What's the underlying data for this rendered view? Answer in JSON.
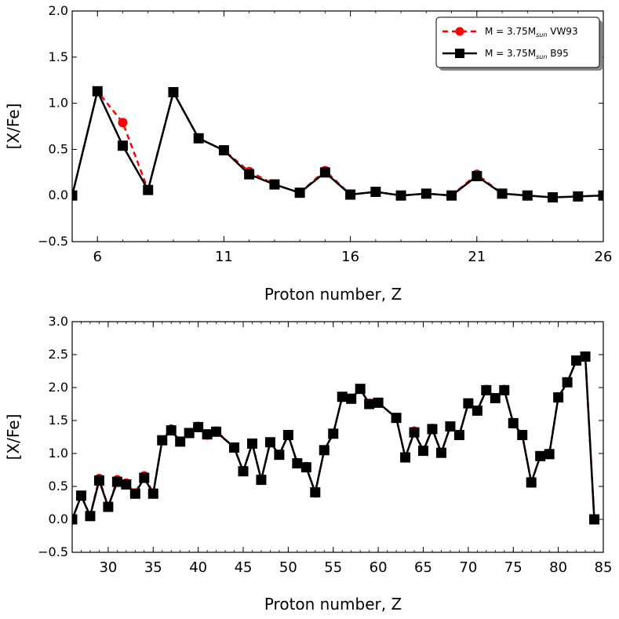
{
  "chart_data": [
    {
      "type": "line",
      "xlabel": "Proton number, Z",
      "ylabel": "[X/Fe]",
      "xlim": [
        5,
        26
      ],
      "ylim": [
        -0.5,
        2.0
      ],
      "xticks": [
        6,
        11,
        16,
        21,
        26
      ],
      "yticks": [
        -0.5,
        0.0,
        0.5,
        1.0,
        1.5,
        2.0
      ],
      "ytick_labels": [
        "−0.5",
        "0.0",
        "0.5",
        "1.0",
        "1.5",
        "2.0"
      ],
      "legend_position": "top-right",
      "series": [
        {
          "name": "M = 3.75M_sun VW93",
          "legend_main": "M = 3.75M",
          "legend_sub": "sun",
          "legend_suffix": " VW93",
          "color": "#ff0000",
          "style": "dashed",
          "marker": "circle",
          "x": [
            5,
            6,
            7,
            8,
            9,
            10,
            11,
            12,
            13,
            14,
            15,
            16,
            17,
            18,
            19,
            20,
            21,
            22,
            23,
            24,
            25,
            26
          ],
          "y": [
            0.0,
            1.13,
            0.79,
            0.06,
            1.12,
            0.62,
            0.49,
            0.26,
            0.12,
            0.03,
            0.27,
            0.01,
            0.04,
            0.0,
            0.02,
            0.0,
            0.23,
            0.02,
            0.0,
            -0.02,
            -0.01,
            0.0
          ]
        },
        {
          "name": "M = 3.75M_sun B95",
          "legend_main": "M = 3.75M",
          "legend_sub": "sun",
          "legend_suffix": " B95",
          "color": "#000000",
          "style": "solid",
          "marker": "square",
          "x": [
            5,
            6,
            7,
            8,
            9,
            10,
            11,
            12,
            13,
            14,
            15,
            16,
            17,
            18,
            19,
            20,
            21,
            22,
            23,
            24,
            25,
            26
          ],
          "y": [
            0.0,
            1.13,
            0.54,
            0.06,
            1.12,
            0.62,
            0.49,
            0.23,
            0.12,
            0.03,
            0.25,
            0.01,
            0.04,
            0.0,
            0.02,
            0.0,
            0.21,
            0.02,
            0.0,
            -0.02,
            -0.01,
            0.0
          ]
        }
      ]
    },
    {
      "type": "line",
      "xlabel": "Proton number, Z",
      "ylabel": "[X/Fe]",
      "xlim": [
        26,
        85
      ],
      "ylim": [
        -0.5,
        3.0
      ],
      "xticks": [
        30,
        35,
        40,
        45,
        50,
        55,
        60,
        65,
        70,
        75,
        80,
        85
      ],
      "yticks": [
        -0.5,
        0.0,
        0.5,
        1.0,
        1.5,
        2.0,
        2.5,
        3.0
      ],
      "ytick_labels": [
        "−0.5",
        "0.0",
        "0.5",
        "1.0",
        "1.5",
        "2.0",
        "2.5",
        "3.0"
      ],
      "series": [
        {
          "name": "M = 3.75M_sun VW93",
          "color": "#ff0000",
          "style": "dashed",
          "marker": "circle",
          "x": [
            26,
            27,
            28,
            29,
            30,
            31,
            32,
            33,
            34,
            35,
            36,
            37,
            38,
            39,
            40,
            41,
            42,
            44,
            45,
            46,
            47,
            48,
            49,
            50,
            51,
            52,
            53,
            54,
            55,
            56,
            57,
            58,
            59,
            60,
            62,
            63,
            64,
            65,
            66,
            67,
            68,
            69,
            70,
            71,
            72,
            73,
            74,
            75,
            76,
            77,
            78,
            79,
            80,
            81,
            82,
            83,
            84
          ],
          "y": [
            0.0,
            0.36,
            0.05,
            0.62,
            0.19,
            0.6,
            0.55,
            0.4,
            0.66,
            0.4,
            1.2,
            1.37,
            1.18,
            1.31,
            1.41,
            1.28,
            1.34,
            1.09,
            0.73,
            1.15,
            0.6,
            1.17,
            0.98,
            1.28,
            0.86,
            0.8,
            0.4,
            1.05,
            1.3,
            1.86,
            1.84,
            1.98,
            1.76,
            1.77,
            1.54,
            0.94,
            1.34,
            1.04,
            1.38,
            1.01,
            1.41,
            1.28,
            1.76,
            1.65,
            1.97,
            1.84,
            1.97,
            1.45,
            1.28,
            0.56,
            0.96,
            1.0,
            1.86,
            2.08,
            2.41,
            2.47,
            0.0
          ]
        },
        {
          "name": "M = 3.75M_sun B95",
          "color": "#000000",
          "style": "solid",
          "marker": "square",
          "x": [
            26,
            27,
            28,
            29,
            30,
            31,
            32,
            33,
            34,
            35,
            36,
            37,
            38,
            39,
            40,
            41,
            42,
            44,
            45,
            46,
            47,
            48,
            49,
            50,
            51,
            52,
            53,
            54,
            55,
            56,
            57,
            58,
            59,
            60,
            62,
            63,
            64,
            65,
            66,
            67,
            68,
            69,
            70,
            71,
            72,
            73,
            74,
            75,
            76,
            77,
            78,
            79,
            80,
            81,
            82,
            83,
            84
          ],
          "y": [
            0.0,
            0.36,
            0.05,
            0.59,
            0.19,
            0.57,
            0.53,
            0.39,
            0.63,
            0.39,
            1.2,
            1.35,
            1.18,
            1.31,
            1.4,
            1.29,
            1.33,
            1.09,
            0.73,
            1.15,
            0.6,
            1.17,
            0.98,
            1.28,
            0.85,
            0.79,
            0.41,
            1.05,
            1.3,
            1.86,
            1.83,
            1.98,
            1.75,
            1.77,
            1.54,
            0.94,
            1.32,
            1.04,
            1.37,
            1.01,
            1.41,
            1.28,
            1.76,
            1.65,
            1.96,
            1.84,
            1.96,
            1.46,
            1.28,
            0.56,
            0.96,
            0.99,
            1.85,
            2.08,
            2.41,
            2.47,
            0.0
          ]
        }
      ]
    }
  ]
}
